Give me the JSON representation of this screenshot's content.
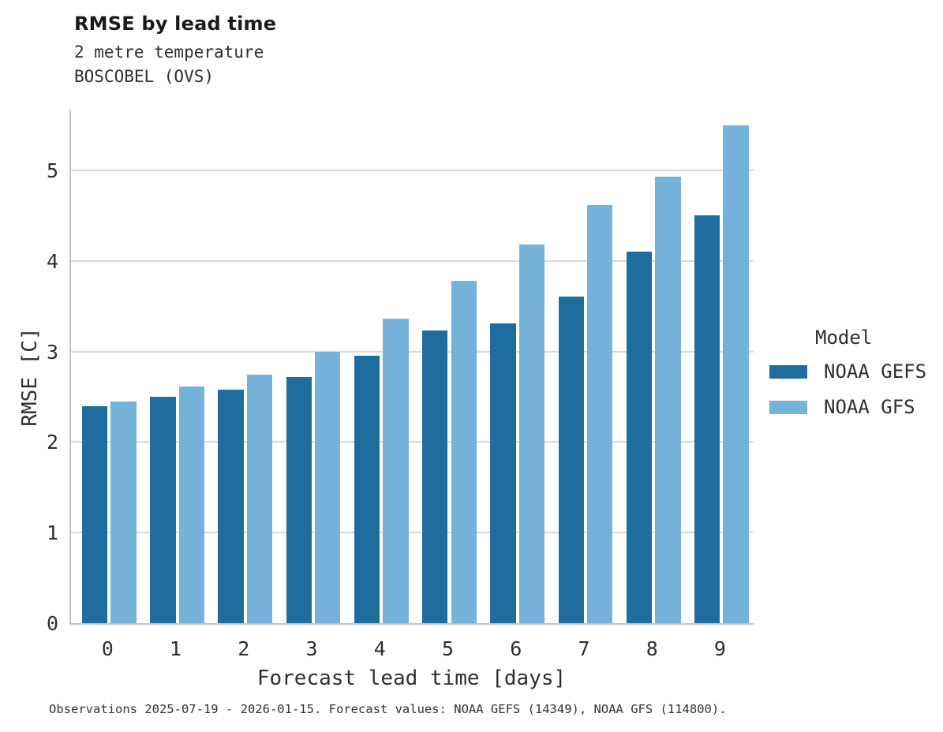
{
  "header": {
    "title": "RMSE by lead time",
    "subtitle1": "2 metre temperature",
    "subtitle2": "BOSCOBEL (OVS)"
  },
  "footer": "Observations 2025-07-19 - 2026-01-15. Forecast values: NOAA GEFS (14349), NOAA GFS (114800).",
  "legend": {
    "title": "Model",
    "items": [
      {
        "label": "NOAA GEFS",
        "color": "#1e6d9e"
      },
      {
        "label": "NOAA GFS",
        "color": "#74b2da"
      }
    ]
  },
  "colors": {
    "gefs_bar": "#1e6d9e",
    "gfs_bar": "#74b2da",
    "gridline": "#d8d8d8",
    "spine": "#c3c3c3"
  },
  "chart_data": {
    "type": "bar",
    "title": "RMSE by lead time",
    "subtitle": [
      "2 metre temperature",
      "BOSCOBEL (OVS)"
    ],
    "categories": [
      "0",
      "1",
      "2",
      "3",
      "4",
      "5",
      "6",
      "7",
      "8",
      "9"
    ],
    "series": [
      {
        "name": "NOAA GEFS",
        "color": "#1e6d9e",
        "values": [
          2.4,
          2.5,
          2.58,
          2.72,
          2.95,
          3.23,
          3.31,
          3.61,
          4.1,
          4.5
        ]
      },
      {
        "name": "NOAA GFS",
        "color": "#74b2da",
        "values": [
          2.45,
          2.61,
          2.74,
          3.0,
          3.36,
          3.78,
          4.18,
          4.62,
          4.93,
          5.5
        ]
      }
    ],
    "xlabel": "Forecast lead time [days]",
    "ylabel": "RMSE [C]",
    "ylim": [
      0,
      5.68
    ],
    "yticks": [
      0,
      1,
      2,
      3,
      4,
      5
    ],
    "grid": true,
    "legend_title": "Model",
    "legend_position": "right"
  }
}
